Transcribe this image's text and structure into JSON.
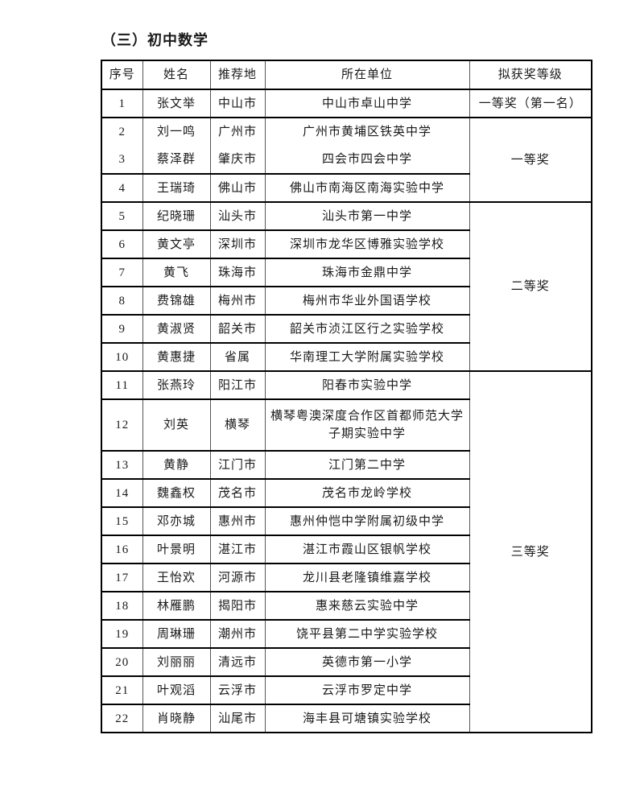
{
  "title": "（三）初中数学",
  "table": {
    "headers": [
      "序号",
      "姓名",
      "推荐地",
      "所在单位",
      "拟获奖等级"
    ],
    "rows": [
      {
        "num": "1",
        "name": "张文举",
        "place": "中山市",
        "school": "中山市卓山中学"
      },
      {
        "num": "2",
        "name": "刘一鸣",
        "place": "广州市",
        "school": "广州市黄埔区铁英中学"
      },
      {
        "num": "3",
        "name": "蔡泽群",
        "place": "肇庆市",
        "school": "四会市四会中学"
      },
      {
        "num": "4",
        "name": "王瑞琦",
        "place": "佛山市",
        "school": "佛山市南海区南海实验中学"
      },
      {
        "num": "5",
        "name": "纪晓珊",
        "place": "汕头市",
        "school": "汕头市第一中学"
      },
      {
        "num": "6",
        "name": "黄文亭",
        "place": "深圳市",
        "school": "深圳市龙华区博雅实验学校"
      },
      {
        "num": "7",
        "name": "黄飞",
        "place": "珠海市",
        "school": "珠海市金鼎中学"
      },
      {
        "num": "8",
        "name": "费锦雄",
        "place": "梅州市",
        "school": "梅州市华业外国语学校"
      },
      {
        "num": "9",
        "name": "黄淑贤",
        "place": "韶关市",
        "school": "韶关市浈江区行之实验学校"
      },
      {
        "num": "10",
        "name": "黄惠捷",
        "place": "省属",
        "school": "华南理工大学附属实验学校"
      },
      {
        "num": "11",
        "name": "张燕玲",
        "place": "阳江市",
        "school": "阳春市实验中学"
      },
      {
        "num": "12",
        "name": "刘英",
        "place": "横琴",
        "school": "横琴粤澳深度合作区首都师范大学子期实验中学",
        "tall": true
      },
      {
        "num": "13",
        "name": "黄静",
        "place": "江门市",
        "school": "江门第二中学"
      },
      {
        "num": "14",
        "name": "魏鑫权",
        "place": "茂名市",
        "school": "茂名市龙岭学校"
      },
      {
        "num": "15",
        "name": "邓亦城",
        "place": "惠州市",
        "school": "惠州仲恺中学附属初级中学"
      },
      {
        "num": "16",
        "name": "叶景明",
        "place": "湛江市",
        "school": "湛江市霞山区银帆学校"
      },
      {
        "num": "17",
        "name": "王怡欢",
        "place": "河源市",
        "school": "龙川县老隆镇维嘉学校"
      },
      {
        "num": "18",
        "name": "林雁鹏",
        "place": "揭阳市",
        "school": "惠来慈云实验中学"
      },
      {
        "num": "19",
        "name": "周琳珊",
        "place": "潮州市",
        "school": "饶平县第二中学实验学校"
      },
      {
        "num": "20",
        "name": "刘丽丽",
        "place": "清远市",
        "school": "英德市第一小学"
      },
      {
        "num": "21",
        "name": "叶观滔",
        "place": "云浮市",
        "school": "云浮市罗定中学"
      },
      {
        "num": "22",
        "name": "肖晓静",
        "place": "汕尾市",
        "school": "海丰县可塘镇实验学校"
      }
    ],
    "award_groups": [
      {
        "label": "一等奖（第一名）",
        "start_num": "1",
        "span": 1
      },
      {
        "label": "一等奖",
        "start_num": "2",
        "span": 3
      },
      {
        "label": "二等奖",
        "start_num": "5",
        "span": 6
      },
      {
        "label": "三等奖",
        "start_num": "11",
        "span": 12
      }
    ],
    "hidden_divider_after_nums": [
      "2"
    ]
  },
  "colors": {
    "background": "#ffffff",
    "text": "#1a1a1a",
    "border_horizontal": "#000000",
    "border_vertical": "#555555"
  }
}
